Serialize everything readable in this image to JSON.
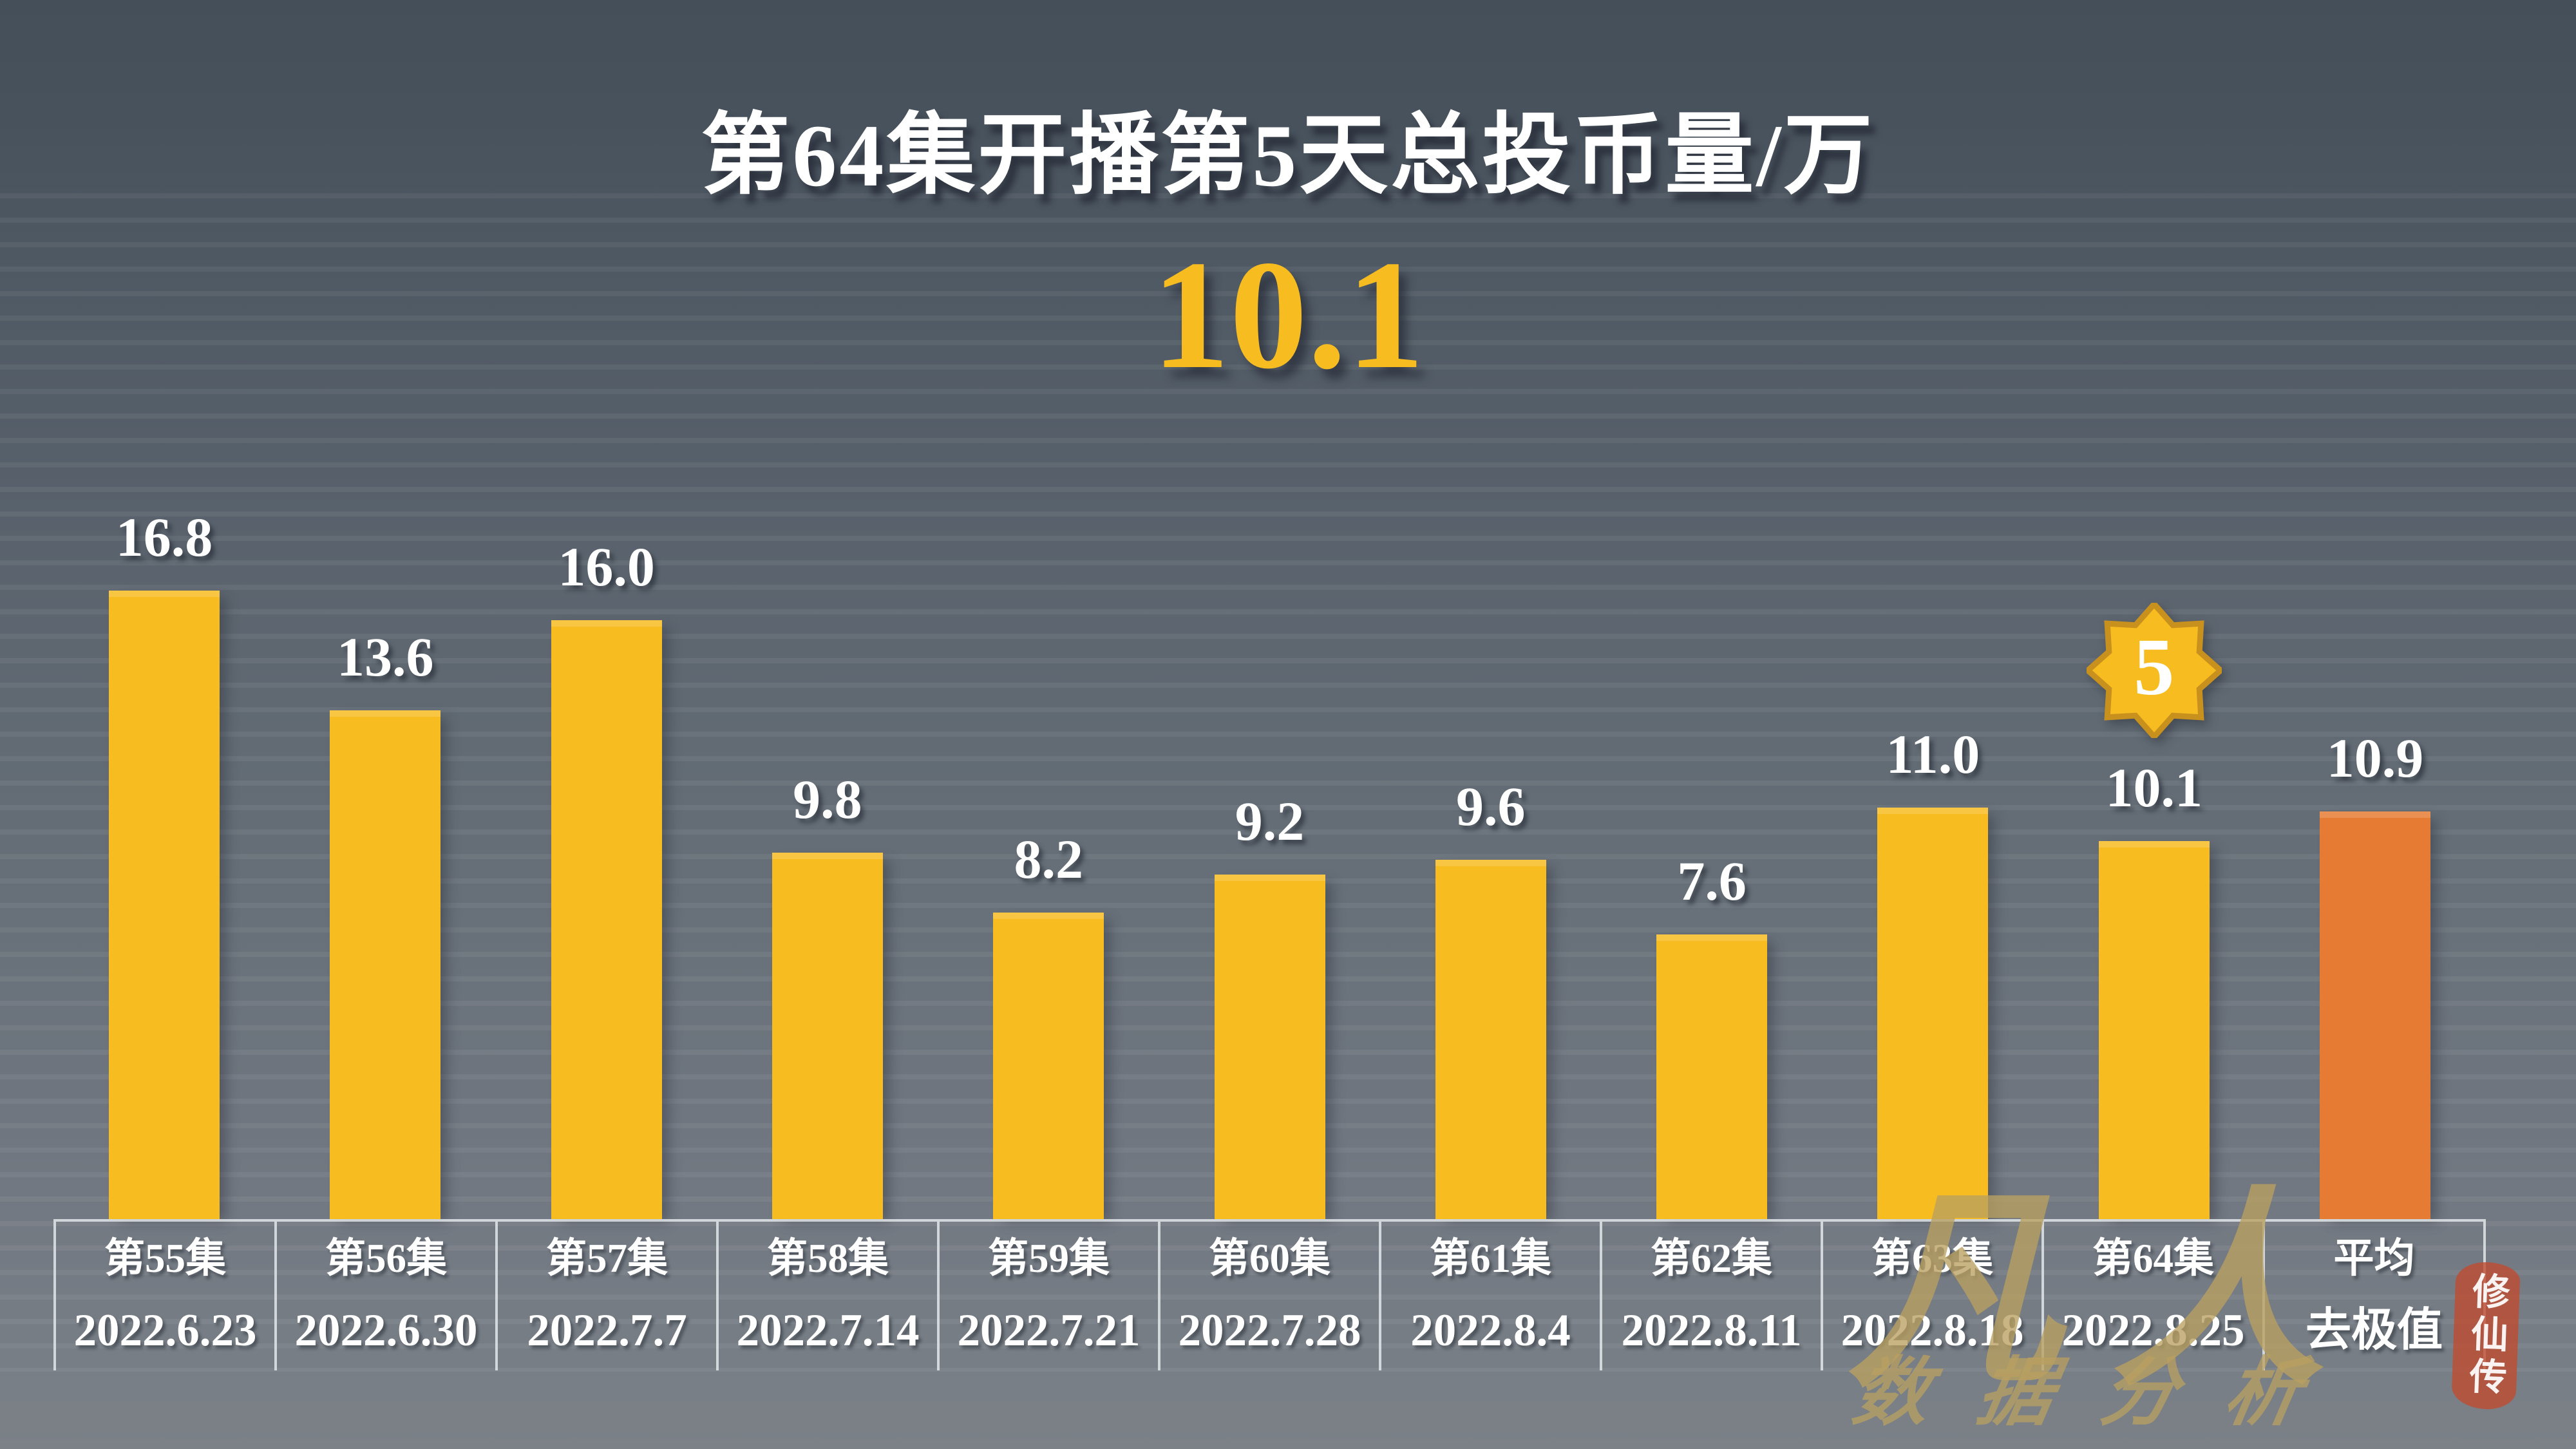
{
  "header": {
    "title": "第64集开播第5天总投币量/万",
    "highlight_value": "10.1",
    "highlight_color": "#F7BC20"
  },
  "chart_data": {
    "type": "bar",
    "title": "第64集开播第5天总投币量/万",
    "unit": "万",
    "ylim": [
      0,
      18
    ],
    "grid": "faint horizontal background stripes, no labeled axes",
    "legend_position": "none",
    "bar_color": "#F7BC20",
    "highlight_bar_color": "#E67B33",
    "value_label_color": "#FFFFFF",
    "categories": [
      "第55集",
      "第56集",
      "第57集",
      "第58集",
      "第59集",
      "第60集",
      "第61集",
      "第62集",
      "第63集",
      "第64集",
      "平均"
    ],
    "dates": [
      "2022.6.23",
      "2022.6.30",
      "2022.7.7",
      "2022.7.14",
      "2022.7.21",
      "2022.7.28",
      "2022.8.4",
      "2022.8.11",
      "2022.8.18",
      "2022.8.25",
      "去极值"
    ],
    "values": [
      16.8,
      13.6,
      16.0,
      9.8,
      8.2,
      9.2,
      9.6,
      7.6,
      11.0,
      10.1,
      10.9
    ],
    "highlight_index": 10,
    "badge": {
      "value": "5",
      "shape": "8-point-star",
      "fill": "#F7BC20",
      "border": "#C8911E",
      "on_category": "第64集"
    }
  },
  "watermark": {
    "name_line": "凡人",
    "seal_text": "修仙传",
    "sub_line": "数据分析"
  }
}
